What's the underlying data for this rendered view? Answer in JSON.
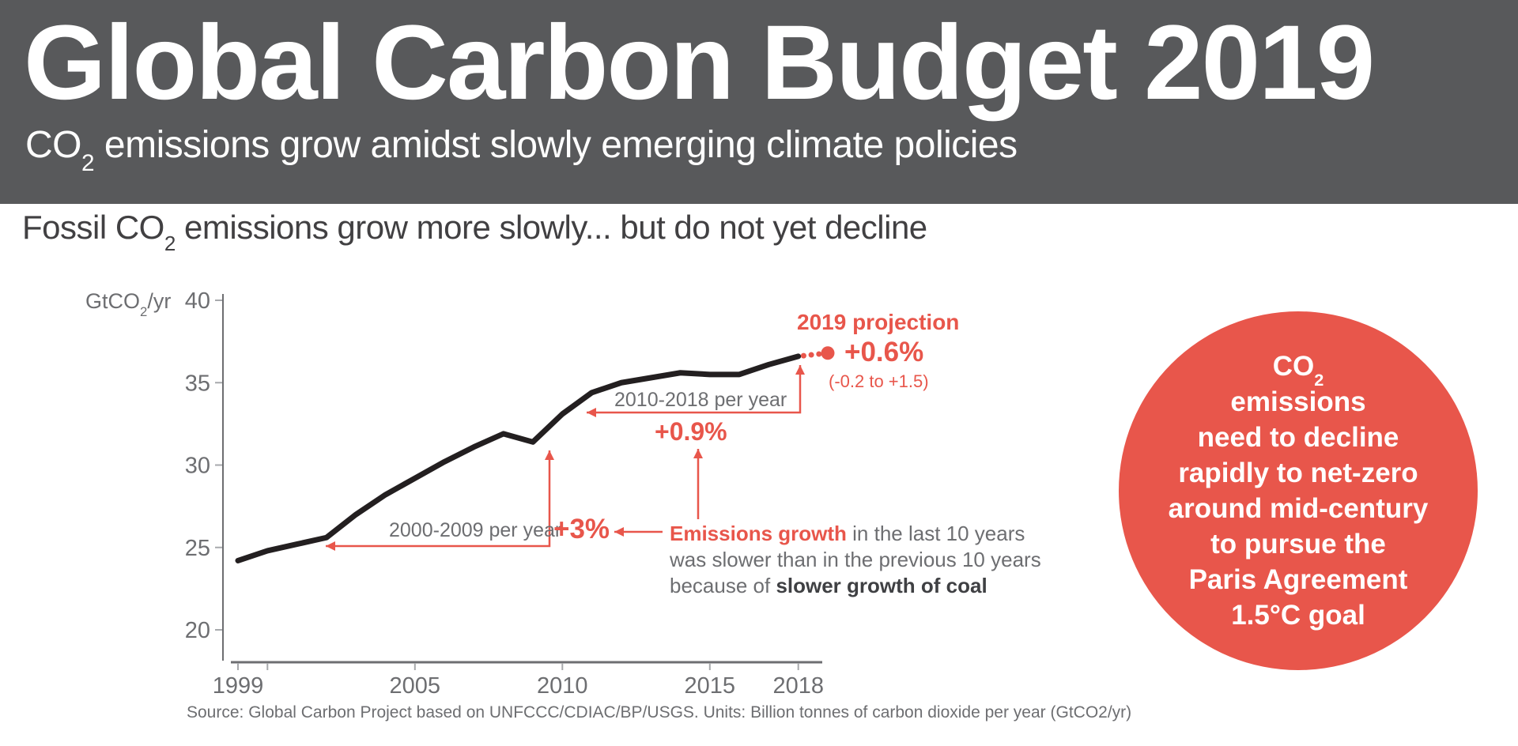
{
  "header": {
    "title": "Global Carbon Budget 2019",
    "subtitle_prefix": "CO",
    "subtitle_sub": "2",
    "subtitle_rest": " emissions grow amidst slowly emerging climate policies"
  },
  "section": {
    "heading_prefix": "Fossil CO",
    "heading_sub": "2",
    "heading_rest": " emissions grow more slowly... but do not yet decline"
  },
  "chart_data": {
    "type": "line",
    "title": "Fossil CO2 emissions grow more slowly... but do not yet decline",
    "xlabel": "",
    "ylabel": "GtCO2/yr",
    "ylabel_parts": {
      "prefix": "GtCO",
      "sub": "2",
      "suffix": "/yr"
    },
    "x": [
      1999,
      2000,
      2001,
      2002,
      2003,
      2004,
      2005,
      2006,
      2007,
      2008,
      2009,
      2010,
      2011,
      2012,
      2013,
      2014,
      2015,
      2016,
      2017,
      2018
    ],
    "values": [
      24.2,
      24.8,
      25.2,
      25.6,
      27.0,
      28.2,
      29.2,
      30.2,
      31.1,
      31.9,
      31.4,
      33.1,
      34.4,
      35.0,
      35.3,
      35.6,
      35.5,
      35.5,
      36.1,
      36.6
    ],
    "projection": {
      "year": 2019,
      "value": 36.8
    },
    "ylim": [
      20,
      40
    ],
    "yticks": [
      40,
      35,
      30,
      25,
      20
    ],
    "xtick_labels": [
      1999,
      2005,
      2010,
      2015,
      2018
    ],
    "xtick_marks": [
      1999,
      2000,
      2005,
      2010,
      2015,
      2018
    ],
    "grid": false,
    "line_color": "#231f20",
    "accent_color": "#e8564b",
    "axis_color": "#6d6e71",
    "tick_color": "#a7a9ac"
  },
  "annotations": {
    "projection_label": "2019 projection",
    "projection_value": "+0.6%",
    "projection_range": "(-0.2 to +1.5)",
    "period_recent": "2010-2018 per year",
    "rate_recent": "+0.9%",
    "period_previous": "2000-2009 per year",
    "rate_previous": "+3%",
    "explain_bold_red": "Emissions growth",
    "explain_line1_rest": " in the last 10 years",
    "explain_line2": "was slower than in the previous 10 years",
    "explain_line3_prefix": "because of ",
    "explain_line3_bold": "slower growth of coal"
  },
  "circle": {
    "line1_prefix": "CO",
    "line1_sub": "2",
    "lines": [
      "emissions",
      "need to decline",
      "rapidly to net-zero",
      "around mid-century",
      "to pursue the",
      "Paris Agreement",
      "1.5°C goal"
    ]
  },
  "source": "Source: Global Carbon Project based on UNFCCC/CDIAC/BP/USGS. Units: Billion tonnes of carbon dioxide per year (GtCO2/yr)",
  "colors": {
    "header_bg": "#58595b",
    "accent": "#e8564b",
    "text_dark": "#414042",
    "text_gray": "#6d6e71",
    "curve": "#231f20"
  }
}
